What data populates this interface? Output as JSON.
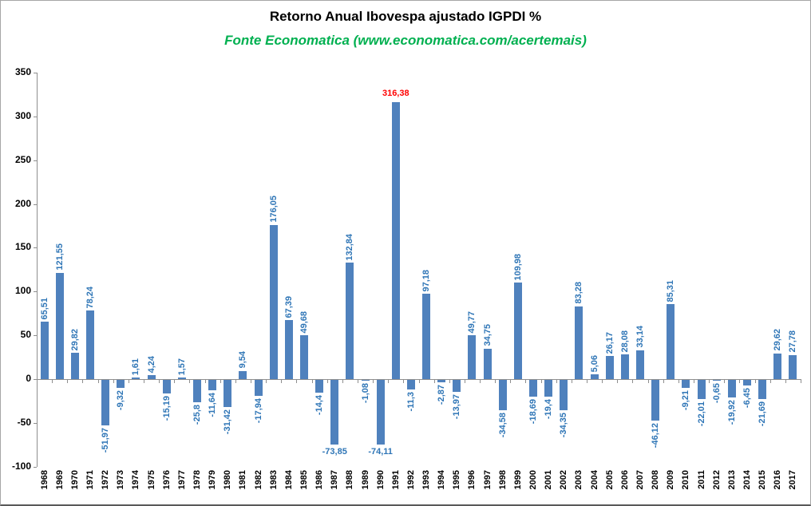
{
  "header": {
    "title": "Retorno Anual Ibovespa ajustado IGPDI %",
    "subtitle": "Fonte Economatica (www.economatica.com/acertemais)"
  },
  "colors": {
    "bar": "#4F81BD",
    "data_label": "#2E75B6",
    "highlight_label": "#FF0000",
    "subtitle_green": "#00B050",
    "axis_gray": "#8E8E8E",
    "tick_label_black": "#000000"
  },
  "chart_data": {
    "type": "bar",
    "title": "Retorno Anual Ibovespa ajustado IGPDI %",
    "subtitle": "Fonte Economatica (www.economatica.com/acertemais)",
    "xlabel": "",
    "ylabel": "",
    "ylim": [
      -100,
      350
    ],
    "yticks": [
      350,
      300,
      250,
      200,
      150,
      100,
      50,
      0,
      -50,
      -100
    ],
    "grid": false,
    "legend": false,
    "categories": [
      "1968",
      "1969",
      "1970",
      "1971",
      "1972",
      "1973",
      "1974",
      "1975",
      "1976",
      "1977",
      "1978",
      "1979",
      "1980",
      "1981",
      "1982",
      "1983",
      "1984",
      "1985",
      "1986",
      "1987",
      "1988",
      "1989",
      "1990",
      "1991",
      "1992",
      "1993",
      "1994",
      "1995",
      "1996",
      "1997",
      "1998",
      "1999",
      "2000",
      "2001",
      "2002",
      "2003",
      "2004",
      "2005",
      "2006",
      "2007",
      "2008",
      "2009",
      "2010",
      "2011",
      "2012",
      "2013",
      "2014",
      "2015",
      "2016",
      "2017"
    ],
    "values": [
      65.51,
      121.55,
      29.82,
      78.24,
      -51.97,
      -9.32,
      1.61,
      4.24,
      -15.19,
      1.57,
      -25.8,
      -11.64,
      -31.42,
      9.54,
      -17.94,
      176.05,
      67.39,
      49.68,
      -14.4,
      -73.85,
      132.84,
      -1.08,
      -74.11,
      316.38,
      -11.3,
      97.18,
      -2.87,
      -13.97,
      49.77,
      34.75,
      -34.58,
      109.98,
      -18.69,
      -19.4,
      -34.35,
      83.28,
      5.06,
      26.17,
      28.08,
      33.14,
      -46.12,
      85.31,
      -9.21,
      -22.01,
      -0.65,
      -19.92,
      -6.45,
      -21.69,
      29.62,
      27.78
    ],
    "labels": [
      "65,51",
      "121,55",
      "29,82",
      "78,24",
      "-51,97",
      "-9,32",
      "1,61",
      "4,24",
      "-15,19",
      "1,57",
      "-25,8",
      "-11,64",
      "-31,42",
      "9,54",
      "-17,94",
      "176,05",
      "67,39",
      "49,68",
      "-14,4",
      "-73,85",
      "132,84",
      "-1,08",
      "-74,11",
      "316,38",
      "-11,3",
      "97,18",
      "-2,87",
      "-13,97",
      "49,77",
      "34,75",
      "-34,58",
      "109,98",
      "-18,69",
      "-19,4",
      "-34,35",
      "83,28",
      "5,06",
      "26,17",
      "28,08",
      "33,14",
      "-46,12",
      "85,31",
      "-9,21",
      "-22,01",
      "-0,65",
      "-19,92",
      "-6,45",
      "-21,69",
      "29,62",
      "27,78"
    ],
    "horizontal_label_categories": [
      "1987",
      "1990",
      "1991"
    ],
    "red_label_categories": [
      "1991"
    ]
  }
}
